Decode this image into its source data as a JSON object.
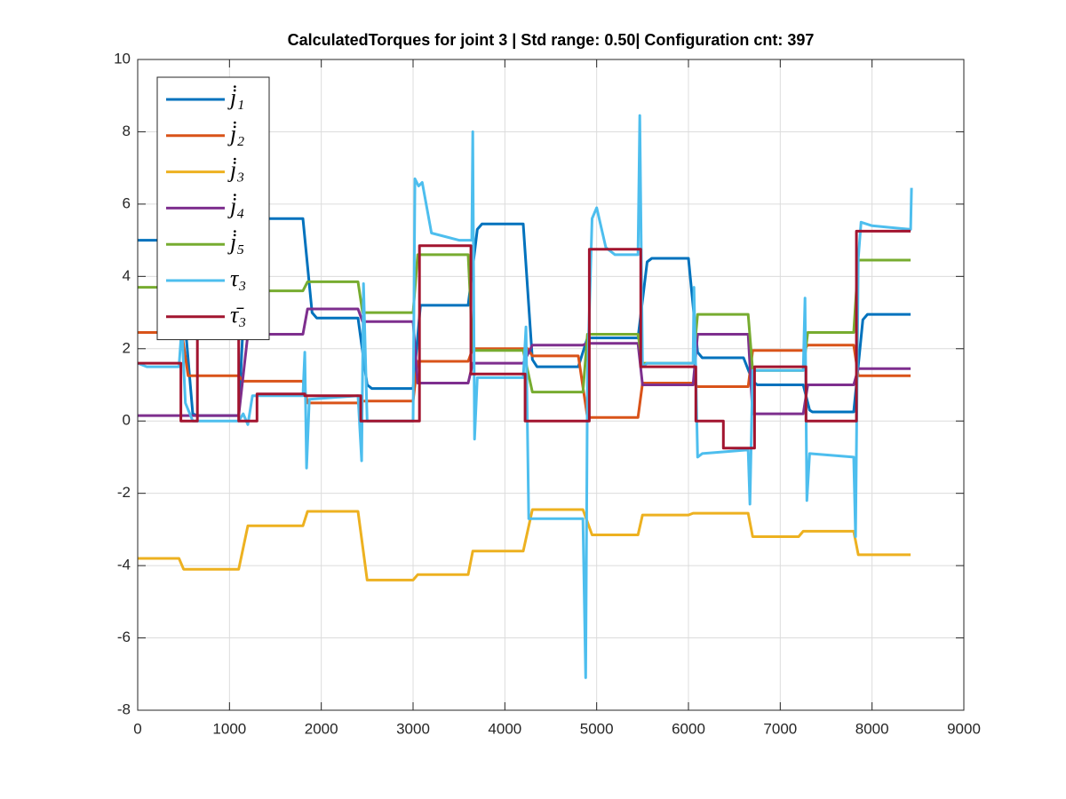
{
  "chart_data": {
    "type": "line",
    "title": "CalculatedTorques for joint 3 | Std range: 0.50| Configuration cnt: 397",
    "xlim": [
      0,
      9000
    ],
    "xticks": [
      0,
      1000,
      2000,
      3000,
      4000,
      5000,
      6000,
      7000,
      8000,
      9000
    ],
    "ylim": [
      -8,
      10
    ],
    "yticks": [
      -8,
      -6,
      -4,
      -2,
      0,
      2,
      4,
      6,
      8,
      10
    ],
    "grid": true,
    "legend": "upper left",
    "series": [
      {
        "name": "j̇₁",
        "color": "#0072BD",
        "x": [
          0,
          450,
          520,
          600,
          650,
          1100,
          1200,
          1250,
          1800,
          1900,
          1950,
          2400,
          2500,
          2550,
          3000,
          3080,
          3600,
          3700,
          3750,
          4200,
          4300,
          4350,
          4800,
          4900,
          5450,
          5550,
          5600,
          6000,
          6100,
          6150,
          6600,
          6700,
          6750,
          7250,
          7320,
          7350,
          7800,
          7900,
          7950,
          8420
        ],
        "values": [
          5,
          5,
          2.6,
          0.2,
          0.15,
          0.15,
          5.4,
          5.6,
          5.6,
          3,
          2.85,
          2.85,
          1,
          0.9,
          0.9,
          3.2,
          3.2,
          5.3,
          5.45,
          5.45,
          1.7,
          1.5,
          1.5,
          2.3,
          2.3,
          4.4,
          4.5,
          4.5,
          1.9,
          1.75,
          1.75,
          1.1,
          1,
          1,
          0.3,
          0.25,
          0.25,
          2.8,
          2.95,
          2.95
        ]
      },
      {
        "name": "j̇₂",
        "color": "#D95319",
        "x": [
          0,
          480,
          550,
          1100,
          1150,
          1800,
          1850,
          2400,
          2450,
          3000,
          3050,
          3600,
          3650,
          4250,
          4300,
          4800,
          4900,
          5450,
          5500,
          6050,
          6100,
          6650,
          6700,
          7250,
          7300,
          7800,
          7850,
          8420
        ],
        "values": [
          2.45,
          2.45,
          1.25,
          1.25,
          1.1,
          1.1,
          0.5,
          0.5,
          0.55,
          0.55,
          1.65,
          1.65,
          2,
          2,
          1.8,
          1.8,
          0.1,
          0.1,
          1.05,
          1.05,
          0.95,
          0.95,
          1.95,
          1.95,
          2.1,
          2.1,
          1.25,
          1.25
        ]
      },
      {
        "name": "j̇₃",
        "color": "#EDB120",
        "x": [
          0,
          450,
          500,
          1100,
          1200,
          1800,
          1850,
          2400,
          2500,
          3000,
          3050,
          3600,
          3650,
          4200,
          4300,
          4850,
          4950,
          5450,
          5500,
          6000,
          6050,
          6650,
          6700,
          7200,
          7250,
          7800,
          7850,
          8420
        ],
        "values": [
          -3.8,
          -3.8,
          -4.1,
          -4.1,
          -2.9,
          -2.9,
          -2.5,
          -2.5,
          -4.4,
          -4.4,
          -4.25,
          -4.25,
          -3.6,
          -3.6,
          -2.45,
          -2.45,
          -3.15,
          -3.15,
          -2.6,
          -2.6,
          -2.55,
          -2.55,
          -3.2,
          -3.2,
          -3.05,
          -3.05,
          -3.7,
          -3.7
        ]
      },
      {
        "name": "j̇₄",
        "color": "#7E2F8E",
        "x": [
          0,
          1100,
          1200,
          1800,
          1850,
          2400,
          2450,
          3000,
          3050,
          3600,
          3650,
          4200,
          4300,
          4850,
          4900,
          5450,
          5500,
          6050,
          6100,
          6650,
          6700,
          7250,
          7300,
          7800,
          7850,
          8420
        ],
        "values": [
          0.15,
          0.15,
          2.4,
          2.4,
          3.1,
          3.1,
          2.75,
          2.75,
          1.05,
          1.05,
          1.6,
          1.6,
          2.1,
          2.1,
          2.15,
          2.15,
          1,
          1,
          2.4,
          2.4,
          0.2,
          0.2,
          1,
          1,
          1.45,
          1.45
        ]
      },
      {
        "name": "j̇₅",
        "color": "#77AC30",
        "x": [
          0,
          480,
          550,
          1100,
          1200,
          1800,
          1850,
          2400,
          2450,
          3000,
          3050,
          3600,
          3650,
          4200,
          4300,
          4850,
          4900,
          5450,
          5500,
          6050,
          6100,
          6650,
          6700,
          7250,
          7300,
          7800,
          7850,
          8420
        ],
        "values": [
          3.7,
          3.7,
          3.6,
          3.6,
          3.6,
          3.6,
          3.85,
          3.85,
          3,
          3,
          4.6,
          4.6,
          1.95,
          1.95,
          0.8,
          0.8,
          2.4,
          2.4,
          1.6,
          1.6,
          2.95,
          2.95,
          1.4,
          1.4,
          2.45,
          2.45,
          4.45,
          4.45
        ]
      },
      {
        "name": "τ₃",
        "color": "#4DBEEE",
        "x": [
          0,
          100,
          450,
          480,
          520,
          600,
          1100,
          1150,
          1200,
          1250,
          1800,
          1820,
          1840,
          1870,
          2400,
          2440,
          2460,
          2500,
          3000,
          3020,
          3060,
          3100,
          3200,
          3500,
          3640,
          3650,
          3670,
          3700,
          4200,
          4230,
          4260,
          4300,
          4850,
          4880,
          4900,
          4950,
          5000,
          5100,
          5200,
          5450,
          5470,
          5500,
          5550,
          6050,
          6060,
          6100,
          6150,
          6650,
          6670,
          6700,
          7250,
          7270,
          7290,
          7320,
          7800,
          7820,
          7850,
          7880,
          8000,
          8420,
          8430
        ],
        "values": [
          1.6,
          1.5,
          1.5,
          2.6,
          0.5,
          0,
          0,
          0.2,
          -0.1,
          0.7,
          0.7,
          1.9,
          -1.3,
          0.6,
          0.7,
          -1.1,
          3.8,
          0,
          0,
          6.7,
          6.5,
          6.6,
          5.2,
          5,
          5,
          8,
          -0.5,
          1.2,
          1.2,
          2.6,
          -2.7,
          -2.7,
          -2.7,
          -7.1,
          1.2,
          5.6,
          5.9,
          4.8,
          4.6,
          4.6,
          8.45,
          1.5,
          1.6,
          1.6,
          3.7,
          -1,
          -0.9,
          -0.8,
          -2.3,
          1.4,
          1.4,
          3.4,
          -2.2,
          -0.9,
          -1,
          -3.2,
          4.5,
          5.5,
          5.4,
          5.3,
          6.45
        ]
      },
      {
        "name": "τ̄₃",
        "color": "#A2142F",
        "x": [
          0,
          470,
          470,
          650,
          650,
          1100,
          1100,
          1300,
          1300,
          1820,
          1820,
          2430,
          2430,
          3070,
          3070,
          3630,
          3630,
          4220,
          4220,
          4920,
          4920,
          5480,
          5480,
          6080,
          6080,
          6380,
          6380,
          6720,
          6720,
          7280,
          7280,
          7830,
          7830,
          8420
        ],
        "values": [
          1.6,
          1.6,
          0,
          0,
          3,
          3,
          0,
          0,
          0.75,
          0.75,
          0.7,
          0.7,
          0,
          0,
          4.85,
          4.85,
          1.3,
          1.3,
          0,
          0,
          4.75,
          4.75,
          1.5,
          1.5,
          0,
          0,
          -0.75,
          -0.75,
          1.5,
          1.5,
          0,
          0,
          5.25,
          5.25
        ]
      }
    ]
  }
}
